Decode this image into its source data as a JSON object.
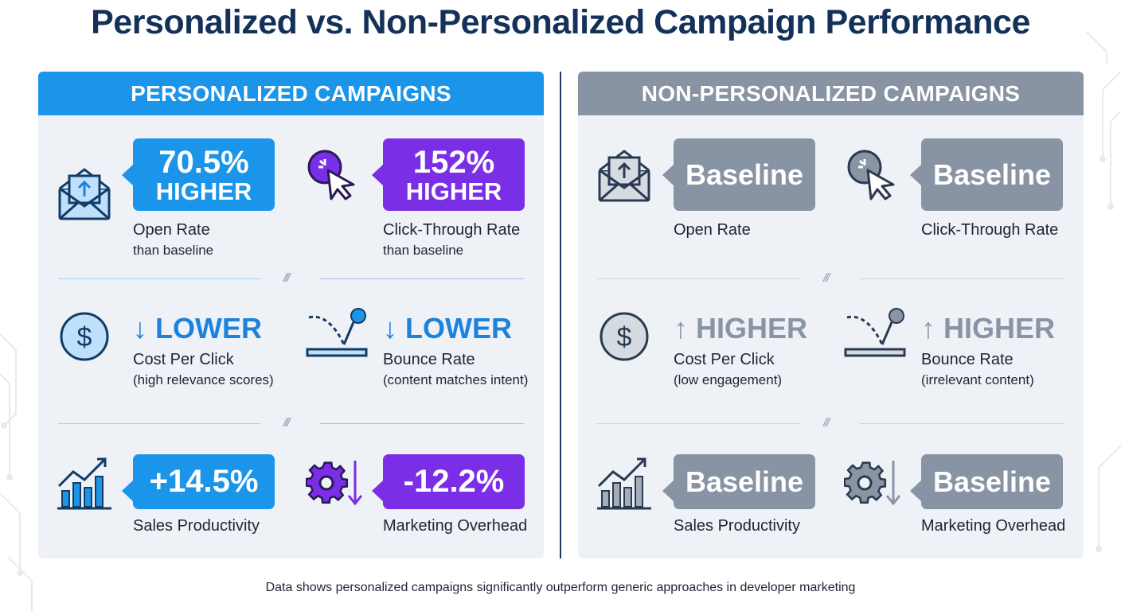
{
  "title": "Personalized vs. Non-Personalized Campaign Performance",
  "colors": {
    "navy": "#14315a",
    "blue": "#1b95ea",
    "purple": "#7a2ee6",
    "gray": "#8893a3",
    "panel_bg": "#eef2f7"
  },
  "separator_mark": "///",
  "personalized": {
    "header": "PERSONALIZED CAMPAIGNS",
    "open_rate": {
      "icon": "envelope-icon",
      "value": "70.5%",
      "qualifier": "HIGHER",
      "label": "Open Rate",
      "sub": "than baseline"
    },
    "ctr": {
      "icon": "cursor-click-icon",
      "value": "152%",
      "qualifier": "HIGHER",
      "label": "Click-Through Rate",
      "sub": "than baseline"
    },
    "cpc": {
      "icon": "dollar-icon",
      "trend": "↓ LOWER",
      "label": "Cost Per Click",
      "sub": "(high relevance scores)"
    },
    "bounce": {
      "icon": "bounce-icon",
      "trend": "↓ LOWER",
      "label": "Bounce Rate",
      "sub": "(content matches intent)"
    },
    "sales": {
      "icon": "growth-chart-icon",
      "value": "+14.5%",
      "label": "Sales Productivity"
    },
    "overhead": {
      "icon": "gear-down-icon",
      "value": "-12.2%",
      "label": "Marketing Overhead"
    }
  },
  "non_personalized": {
    "header": "NON-PERSONALIZED CAMPAIGNS",
    "open_rate": {
      "icon": "envelope-icon",
      "value": "Baseline",
      "label": "Open Rate"
    },
    "ctr": {
      "icon": "cursor-click-icon",
      "value": "Baseline",
      "label": "Click-Through Rate"
    },
    "cpc": {
      "icon": "dollar-icon",
      "trend": "↑ HIGHER",
      "label": "Cost Per Click",
      "sub": "(low engagement)"
    },
    "bounce": {
      "icon": "bounce-icon",
      "trend": "↑ HIGHER",
      "label": "Bounce Rate",
      "sub": "(irrelevant content)"
    },
    "sales": {
      "icon": "growth-chart-icon",
      "value": "Baseline",
      "label": "Sales Productivity"
    },
    "overhead": {
      "icon": "gear-down-icon",
      "value": "Baseline",
      "label": "Marketing Overhead"
    }
  },
  "footnote": "Data shows personalized campaigns significantly outperform generic approaches in developer marketing"
}
